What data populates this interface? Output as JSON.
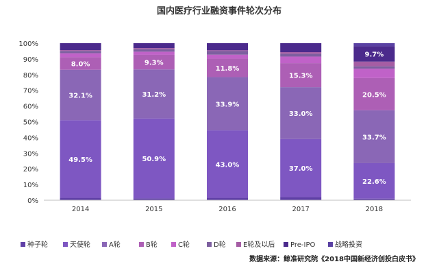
{
  "chart_data": {
    "type": "bar",
    "stacked": true,
    "percent": true,
    "title": "国内医疗行业融资事件轮次分布",
    "categories": [
      "2014",
      "2015",
      "2016",
      "2017",
      "2018"
    ],
    "ylim": [
      0,
      100
    ],
    "yticks": [
      "0%",
      "10%",
      "20%",
      "30%",
      "40%",
      "50%",
      "60%",
      "70%",
      "80%",
      "90%",
      "100%"
    ],
    "grid": false,
    "legend_position": "bottom",
    "series": [
      {
        "name": "种子轮",
        "color": "#5f3fa6",
        "values": [
          1.5,
          1.2,
          1.5,
          2.0,
          1.0
        ]
      },
      {
        "name": "天使轮",
        "color": "#7e57c2",
        "values": [
          49.5,
          50.9,
          43.0,
          37.0,
          22.6
        ]
      },
      {
        "name": "A轮",
        "color": "#8a67b6",
        "values": [
          32.1,
          31.2,
          33.9,
          33.0,
          33.7
        ]
      },
      {
        "name": "B轮",
        "color": "#ad5fb5",
        "values": [
          8.0,
          9.3,
          11.8,
          15.3,
          20.5
        ]
      },
      {
        "name": "C轮",
        "color": "#c062c8",
        "values": [
          2.5,
          2.0,
          2.5,
          4.2,
          6.0
        ]
      },
      {
        "name": "D轮",
        "color": "#7d5f9f",
        "values": [
          1.5,
          1.6,
          2.3,
          1.8,
          1.5
        ]
      },
      {
        "name": "E轮及以后",
        "color": "#a55da4",
        "values": [
          0.5,
          0.7,
          0.5,
          1.0,
          3.0
        ]
      },
      {
        "name": "Pre-IPO",
        "color": "#4b2a8c",
        "values": [
          4.4,
          3.1,
          4.5,
          5.7,
          9.7
        ]
      },
      {
        "name": "战略投资",
        "color": "#5a41a3",
        "values": [
          0.0,
          0.0,
          0.0,
          0.0,
          2.0
        ]
      }
    ],
    "data_labels": [
      {
        "series": 1,
        "category": 0,
        "text": "49.5%"
      },
      {
        "series": 2,
        "category": 0,
        "text": "32.1%"
      },
      {
        "series": 3,
        "category": 0,
        "text": "8.0%"
      },
      {
        "series": 1,
        "category": 1,
        "text": "50.9%"
      },
      {
        "series": 2,
        "category": 1,
        "text": "31.2%"
      },
      {
        "series": 3,
        "category": 1,
        "text": "9.3%"
      },
      {
        "series": 1,
        "category": 2,
        "text": "43.0%"
      },
      {
        "series": 2,
        "category": 2,
        "text": "33.9%"
      },
      {
        "series": 3,
        "category": 2,
        "text": "11.8%"
      },
      {
        "series": 1,
        "category": 3,
        "text": "37.0%"
      },
      {
        "series": 2,
        "category": 3,
        "text": "33.0%"
      },
      {
        "series": 3,
        "category": 3,
        "text": "15.3%"
      },
      {
        "series": 1,
        "category": 4,
        "text": "22.6%"
      },
      {
        "series": 2,
        "category": 4,
        "text": "33.7%"
      },
      {
        "series": 3,
        "category": 4,
        "text": "20.5%"
      },
      {
        "series": 7,
        "category": 4,
        "text": "9.7%"
      }
    ],
    "source": "数据来源：鲸准研究院《2018中国新经济创投白皮书》"
  }
}
